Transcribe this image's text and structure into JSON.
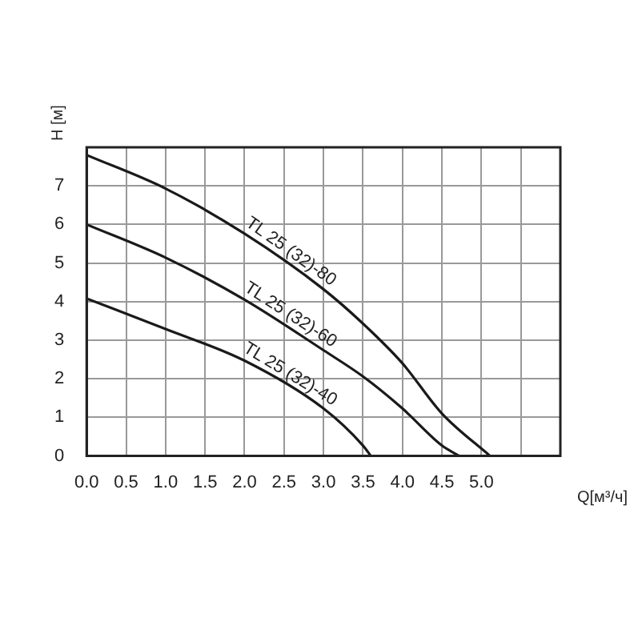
{
  "chart_data": {
    "type": "line",
    "xlabel": "Q[м³/ч]",
    "ylabel": "H [м]",
    "xlim": [
      0,
      6
    ],
    "xticks": [
      {
        "value": 0,
        "label": "0.0"
      },
      0.5,
      {
        "value": 1,
        "label": "1.0"
      },
      1.5,
      {
        "value": 2,
        "label": "2.0"
      },
      2.5,
      {
        "value": 3,
        "label": "3.0"
      },
      3.5,
      {
        "value": 4,
        "label": "4.0"
      },
      4.5,
      {
        "value": 5,
        "label": "5.0"
      },
      {
        "value": 5.5,
        "label": null
      },
      {
        "value": 6,
        "label": null
      }
    ],
    "ylim": [
      0,
      8
    ],
    "yticks": [
      0,
      1,
      2,
      3,
      4,
      5,
      6,
      7,
      {
        "value": 8,
        "label": null
      }
    ],
    "grid": true,
    "legend": false,
    "marker": "none",
    "line_style": "solid",
    "series": [
      {
        "name": "TL 25 (32)-80",
        "color": "#1a1a1a",
        "x": [
          0,
          1,
          2,
          3,
          3.5,
          4,
          4.5,
          5.11
        ],
        "values": [
          7.8,
          6.93,
          5.76,
          4.32,
          3.43,
          2.4,
          1.1,
          0
        ]
      },
      {
        "name": "TL 25 (32)-60",
        "color": "#1a1a1a",
        "x": [
          0,
          1,
          2,
          3,
          3.5,
          4,
          4.5,
          4.72
        ],
        "values": [
          6,
          5.14,
          4.05,
          2.74,
          2.06,
          1.23,
          0.27,
          0
        ]
      },
      {
        "name": "TL 25 (32)-40",
        "color": "#1a1a1a",
        "x": [
          0,
          1,
          2,
          3,
          3.5,
          3.6
        ],
        "values": [
          4.08,
          3.29,
          2.47,
          1.23,
          0.27,
          0
        ]
      }
    ]
  }
}
